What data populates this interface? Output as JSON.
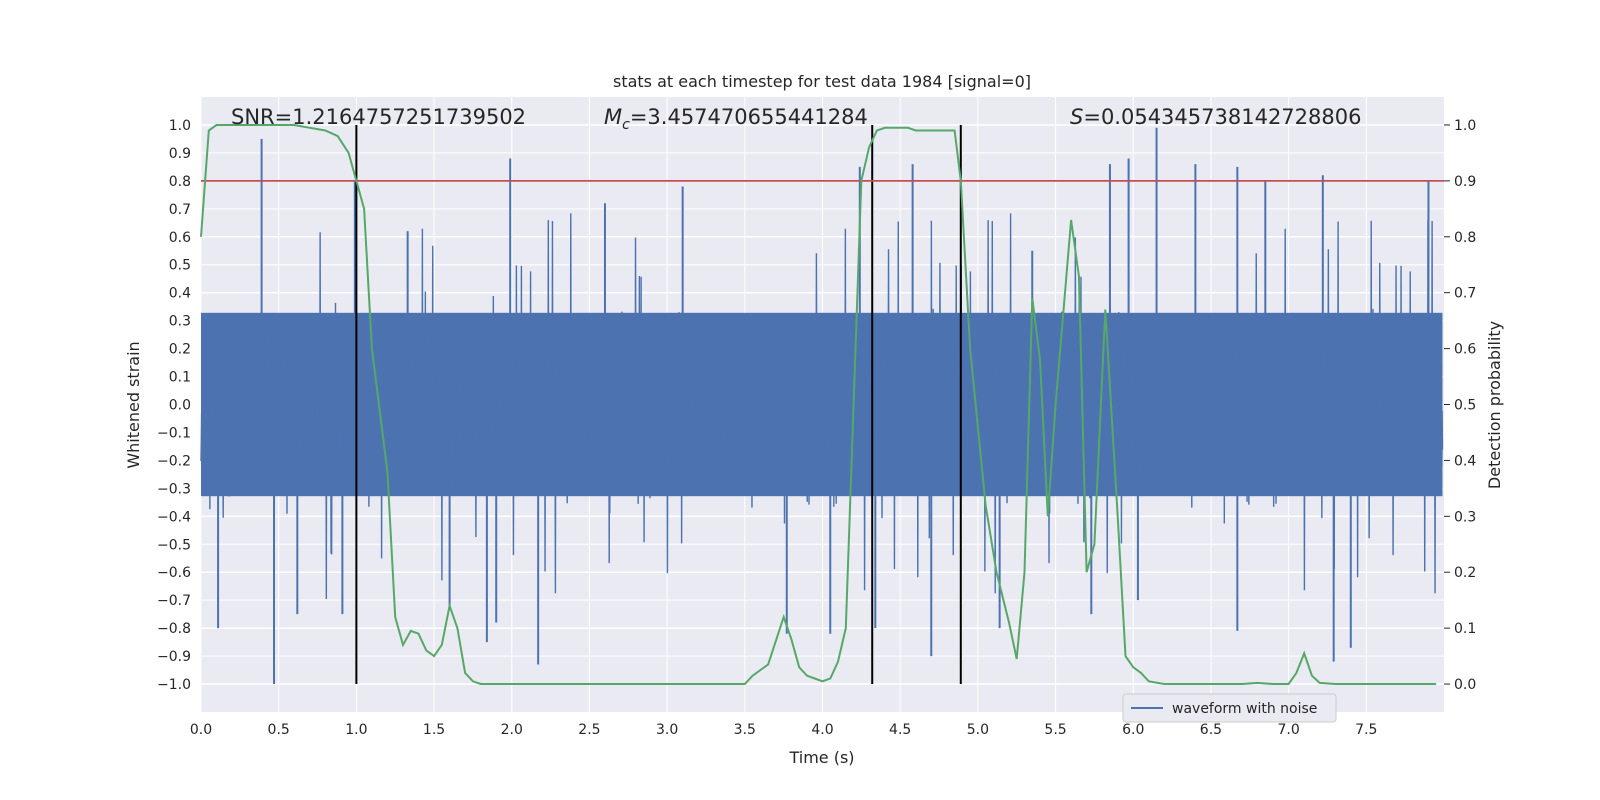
{
  "chart_data": {
    "type": "line",
    "title": "stats at each timestep for test data 1984 [signal=0]",
    "xlabel": "Time (s)",
    "ylabel_left": "Whitened strain",
    "ylabel_right": "Detection probability",
    "xlim": [
      0.0,
      8.0
    ],
    "ylim_left": [
      -1.1,
      1.1
    ],
    "ylim_right": [
      -0.05,
      1.05
    ],
    "x_ticks": [
      "0.0",
      "0.5",
      "1.0",
      "1.5",
      "2.0",
      "2.5",
      "3.0",
      "3.5",
      "4.0",
      "4.5",
      "5.0",
      "5.5",
      "6.0",
      "6.5",
      "7.0",
      "7.5"
    ],
    "y_ticks_left": [
      "1.0",
      "0.9",
      "0.8",
      "0.7",
      "0.6",
      "0.5",
      "0.4",
      "0.3",
      "0.2",
      "0.1",
      "0.0",
      "−0.1",
      "−0.2",
      "−0.3",
      "−0.4",
      "−0.5",
      "−0.6",
      "−0.7",
      "−0.8",
      "−0.9",
      "−1.0"
    ],
    "y_ticks_right": [
      "1.0",
      "0.9",
      "0.8",
      "0.7",
      "0.6",
      "0.5",
      "0.4",
      "0.3",
      "0.2",
      "0.1",
      "0.0"
    ],
    "annotations": {
      "snr": "SNR=1.2164757251739502",
      "mc_symbol": "M",
      "mc_sub": "c",
      "mc_value": "=3.457470655441284",
      "s_symbol": "S",
      "s_value": "=0.054345738142728806"
    },
    "threshold": {
      "value": 0.9,
      "axis": "right",
      "color": "#c44e52"
    },
    "vertical_lines": [
      1.0,
      4.32,
      4.89
    ],
    "legend": {
      "entries": [
        "waveform with noise"
      ],
      "placement": "lower right"
    },
    "series": [
      {
        "name": "waveform with noise",
        "axis": "left",
        "color": "#4c72b0",
        "kind": "noise",
        "band": [
          -0.4,
          0.4
        ],
        "spikes": [
          [
            0.39,
            0.95
          ],
          [
            0.47,
            -1.0
          ],
          [
            0.11,
            -0.8
          ],
          [
            0.62,
            -0.75
          ],
          [
            0.91,
            -0.75
          ],
          [
            0.99,
            0.8
          ],
          [
            1.33,
            0.62
          ],
          [
            1.84,
            -0.85
          ],
          [
            1.99,
            0.88
          ],
          [
            2.17,
            -0.93
          ],
          [
            1.9,
            -0.78
          ],
          [
            3.77,
            -0.82
          ],
          [
            4.05,
            -0.82
          ],
          [
            4.24,
            0.85
          ],
          [
            4.34,
            -0.8
          ],
          [
            4.58,
            0.86
          ],
          [
            4.7,
            -0.9
          ],
          [
            5.14,
            -0.8
          ],
          [
            5.35,
            0.55
          ],
          [
            5.85,
            0.86
          ],
          [
            5.97,
            0.88
          ],
          [
            6.15,
            0.99
          ],
          [
            6.4,
            0.86
          ],
          [
            6.67,
            0.85
          ],
          [
            6.67,
            -0.81
          ],
          [
            7.29,
            -0.92
          ],
          [
            7.4,
            -0.87
          ],
          [
            7.22,
            0.82
          ],
          [
            7.9,
            0.8
          ],
          [
            5.73,
            -0.75
          ],
          [
            3.1,
            0.78
          ],
          [
            2.6,
            0.72
          ],
          [
            6.85,
            0.8
          ],
          [
            6.03,
            -0.7
          ],
          [
            1.6,
            -0.72
          ]
        ]
      },
      {
        "name": "detection probability",
        "axis": "right",
        "color": "#55a868",
        "x": [
          0.0,
          0.05,
          0.1,
          0.2,
          0.3,
          0.5,
          0.6,
          0.7,
          0.8,
          0.88,
          0.95,
          1.0,
          1.05,
          1.1,
          1.2,
          1.25,
          1.3,
          1.35,
          1.4,
          1.45,
          1.5,
          1.55,
          1.6,
          1.65,
          1.7,
          1.75,
          1.8,
          1.85,
          1.9,
          2.0,
          2.1,
          2.2,
          2.5,
          3.0,
          3.5,
          3.55,
          3.65,
          3.75,
          3.8,
          3.85,
          3.9,
          3.95,
          4.0,
          4.05,
          4.1,
          4.15,
          4.2,
          4.25,
          4.3,
          4.35,
          4.4,
          4.5,
          4.55,
          4.6,
          4.7,
          4.8,
          4.85,
          4.89,
          4.95,
          5.05,
          5.12,
          5.2,
          5.25,
          5.3,
          5.35,
          5.4,
          5.45,
          5.5,
          5.6,
          5.65,
          5.7,
          5.75,
          5.82,
          5.9,
          5.95,
          6.0,
          6.05,
          6.1,
          6.2,
          6.3,
          6.5,
          6.7,
          6.8,
          6.9,
          7.0,
          7.05,
          7.1,
          7.15,
          7.2,
          7.3,
          7.5,
          7.95
        ],
        "y": [
          0.8,
          0.99,
          1.0,
          1.0,
          1.0,
          1.0,
          1.0,
          0.995,
          0.99,
          0.98,
          0.95,
          0.9,
          0.85,
          0.6,
          0.38,
          0.12,
          0.07,
          0.095,
          0.09,
          0.06,
          0.05,
          0.07,
          0.14,
          0.1,
          0.02,
          0.005,
          0.0,
          0.0,
          0.0,
          0.0,
          0.0,
          0.0,
          0.0,
          0.0,
          0.0,
          0.015,
          0.035,
          0.12,
          0.08,
          0.03,
          0.015,
          0.01,
          0.005,
          0.01,
          0.04,
          0.1,
          0.5,
          0.9,
          0.96,
          0.99,
          0.995,
          0.995,
          0.995,
          0.99,
          0.99,
          0.99,
          0.99,
          0.9,
          0.6,
          0.32,
          0.2,
          0.11,
          0.045,
          0.2,
          0.69,
          0.58,
          0.3,
          0.5,
          0.83,
          0.73,
          0.2,
          0.25,
          0.67,
          0.3,
          0.05,
          0.03,
          0.02,
          0.005,
          0.0,
          0.0,
          0.0,
          0.0,
          0.002,
          0.0,
          0.0,
          0.02,
          0.055,
          0.015,
          0.002,
          0.0,
          0.0,
          0.0
        ]
      }
    ]
  }
}
